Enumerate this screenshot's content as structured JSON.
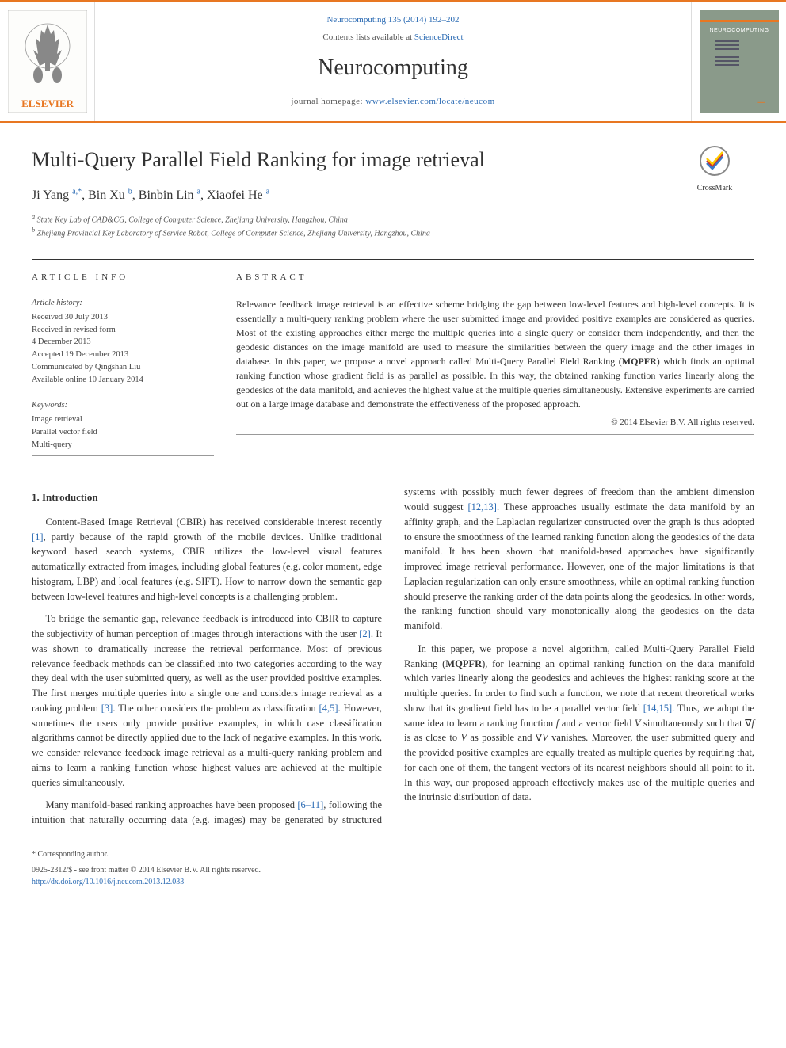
{
  "header": {
    "journal_ref": "Neurocomputing 135 (2014) 192–202",
    "contents_prefix": "Contents lists available at ",
    "contents_link": "ScienceDirect",
    "journal_title": "Neurocomputing",
    "homepage_prefix": "journal homepage: ",
    "homepage_url": "www.elsevier.com/locate/neucom",
    "publisher_label": "ELSEVIER",
    "cover_label": "NEUROCOMPUTING"
  },
  "paper": {
    "title": "Multi-Query Parallel Field Ranking for image retrieval",
    "authors_html": "Ji Yang <sup>a,*</sup>, Bin Xu <sup>b</sup>, Binbin Lin <sup>a</sup>, Xiaofei He <sup>a</sup>",
    "affiliations": [
      "a State Key Lab of CAD&CG, College of Computer Science, Zhejiang University, Hangzhou, China",
      "b Zhejiang Provincial Key Laboratory of Service Robot, College of Computer Science, Zhejiang University, Hangzhou, China"
    ],
    "crossmark_label": "CrossMark"
  },
  "article_info": {
    "heading": "ARTICLE INFO",
    "history_label": "Article history:",
    "history": [
      "Received 30 July 2013",
      "Received in revised form",
      "4 December 2013",
      "Accepted 19 December 2013",
      "Communicated by Qingshan Liu",
      "Available online 10 January 2014"
    ],
    "keywords_label": "Keywords:",
    "keywords": [
      "Image retrieval",
      "Parallel vector field",
      "Multi-query"
    ]
  },
  "abstract": {
    "heading": "ABSTRACT",
    "text": "Relevance feedback image retrieval is an effective scheme bridging the gap between low-level features and high-level concepts. It is essentially a multi-query ranking problem where the user submitted image and provided positive examples are considered as queries. Most of the existing approaches either merge the multiple queries into a single query or consider them independently, and then the geodesic distances on the image manifold are used to measure the similarities between the query image and the other images in database. In this paper, we propose a novel approach called Multi-Query Parallel Field Ranking (MQPFR) which finds an optimal ranking function whose gradient field is as parallel as possible. In this way, the obtained ranking function varies linearly along the geodesics of the data manifold, and achieves the highest value at the multiple queries simultaneously. Extensive experiments are carried out on a large image database and demonstrate the effectiveness of the proposed approach.",
    "copyright": "© 2014 Elsevier B.V. All rights reserved."
  },
  "body": {
    "section1_heading": "1. Introduction",
    "p1": "Content-Based Image Retrieval (CBIR) has received considerable interest recently [1], partly because of the rapid growth of the mobile devices. Unlike traditional keyword based search systems, CBIR utilizes the low-level visual features automatically extracted from images, including global features (e.g. color moment, edge histogram, LBP) and local features (e.g. SIFT). How to narrow down the semantic gap between low-level features and high-level concepts is a challenging problem.",
    "p2": "To bridge the semantic gap, relevance feedback is introduced into CBIR to capture the subjectivity of human perception of images through interactions with the user [2]. It was shown to dramatically increase the retrieval performance. Most of previous relevance feedback methods can be classified into two categories according to the way they deal with the user submitted query, as well as the user provided positive examples. The first merges multiple queries into a single one and considers image retrieval as a ranking problem [3]. The other considers the problem as classification [4,5]. However, sometimes the users only provide positive examples, in which case classification algorithms cannot be directly applied due to the lack of negative examples. In this work, we consider relevance feedback image retrieval as a multi-query ranking problem and aims to learn a ranking function whose highest values are achieved at the multiple queries simultaneously.",
    "p3": "Many manifold-based ranking approaches have been proposed [6–11], following the intuition that naturally occurring data (e.g. images) may be generated by structured systems with possibly much fewer degrees of freedom than the ambient dimension would suggest [12,13]. These approaches usually estimate the data manifold by an affinity graph, and the Laplacian regularizer constructed over the graph is thus adopted to ensure the smoothness of the learned ranking function along the geodesics of the data manifold. It has been shown that manifold-based approaches have significantly improved image retrieval performance. However, one of the major limitations is that Laplacian regularization can only ensure smoothness, while an optimal ranking function should preserve the ranking order of the data points along the geodesics. In other words, the ranking function should vary monotonically along the geodesics on the data manifold.",
    "p4_pre": "In this paper, we propose a novel algorithm, called Multi-Query Parallel Field Ranking (MQPFR), for learning an optimal ranking function on the data manifold which varies linearly along the geodesics and achieves the highest ranking score at the multiple queries. In order to find such a function, we note that recent theoretical works show that its gradient field has to be a parallel vector field [14,15]. Thus, we adopt the same idea to learn a ranking function ",
    "p4_f": "f",
    "p4_mid1": " and a vector field ",
    "p4_V": "V",
    "p4_mid2": " simultaneously such that ∇",
    "p4_mid3": " is as close to ",
    "p4_mid4": " as possible and ∇",
    "p4_post": " vanishes. Moreover, the user submitted query and the provided positive examples are equally treated as multiple queries by requiring that, for each one of them, the tangent vectors of its nearest neighbors should all point to it. In this way, our proposed approach effectively makes use of the multiple queries and the intrinsic distribution of data."
  },
  "footer": {
    "corresponding": "* Corresponding author.",
    "issn_line": "0925-2312/$ - see front matter © 2014 Elsevier B.V. All rights reserved.",
    "doi": "http://dx.doi.org/10.1016/j.neucom.2013.12.033"
  },
  "colors": {
    "accent_orange": "#e87722",
    "link_blue": "#2a6ab3",
    "text_dark": "#333333",
    "cover_bg": "#8a9a8a",
    "cover_stripe": "#e87722"
  }
}
